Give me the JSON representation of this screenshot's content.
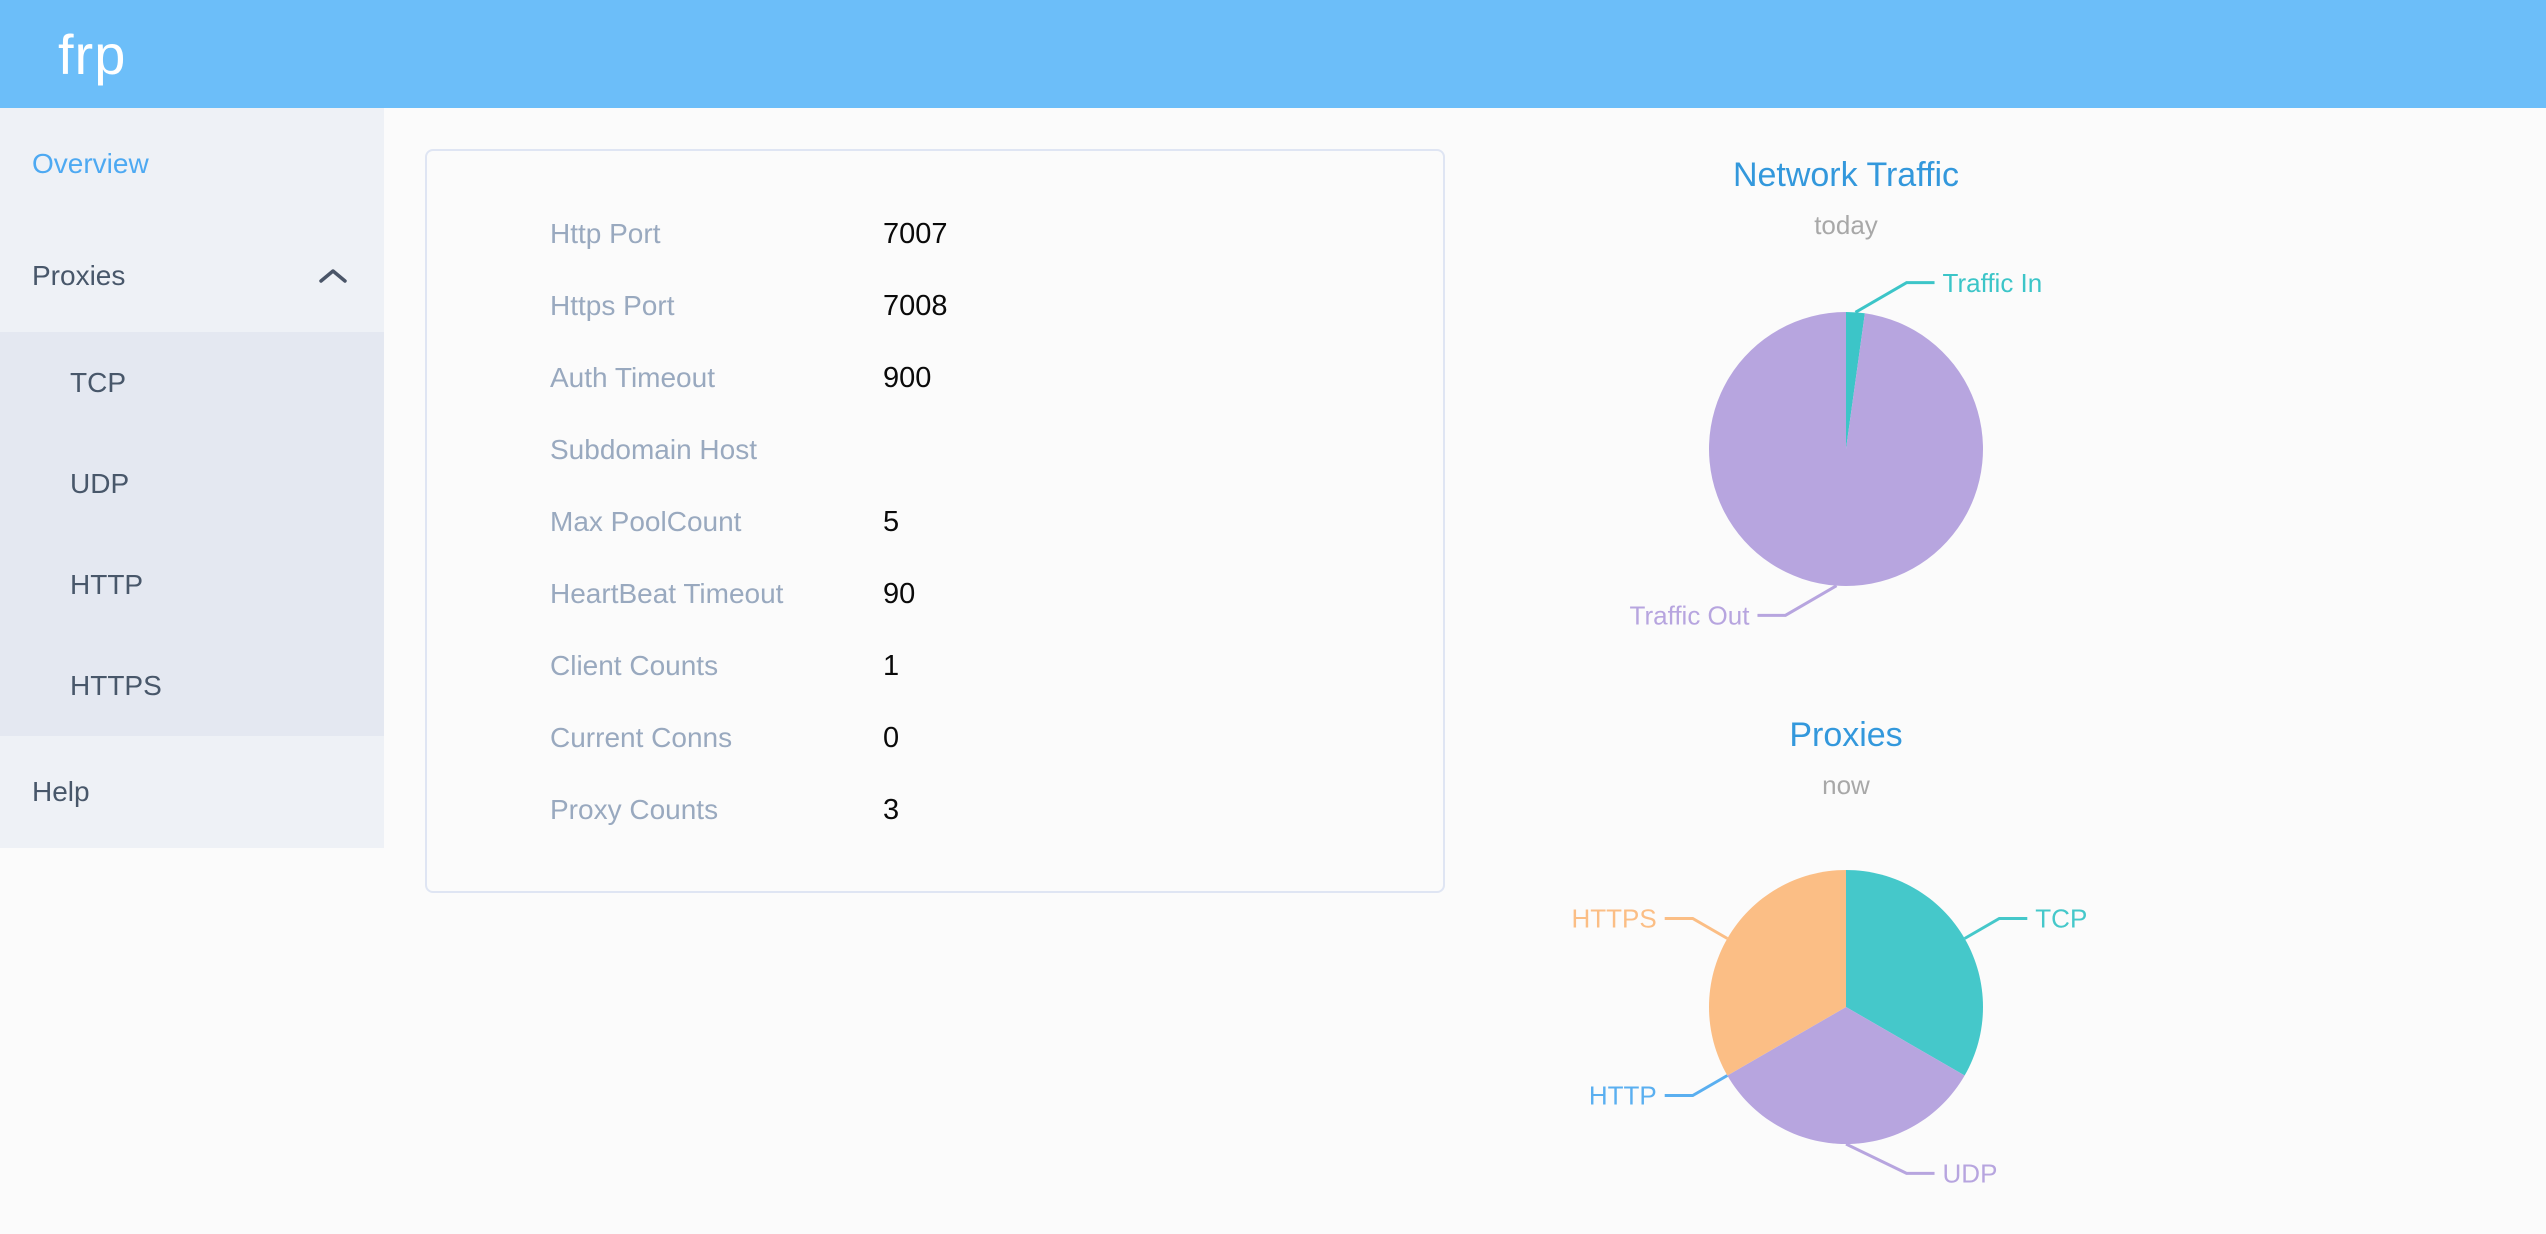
{
  "header": {
    "logo": "frp"
  },
  "sidebar": {
    "items": [
      {
        "label": "Overview",
        "active": true
      },
      {
        "label": "Proxies",
        "expanded": true
      },
      {
        "label": "TCP"
      },
      {
        "label": "UDP"
      },
      {
        "label": "HTTP"
      },
      {
        "label": "HTTPS"
      },
      {
        "label": "Help"
      }
    ]
  },
  "overview": {
    "rows": [
      {
        "label": "Http Port",
        "value": "7007"
      },
      {
        "label": "Https Port",
        "value": "7008"
      },
      {
        "label": "Auth Timeout",
        "value": "900"
      },
      {
        "label": "Subdomain Host",
        "value": ""
      },
      {
        "label": "Max PoolCount",
        "value": "5"
      },
      {
        "label": "HeartBeat Timeout",
        "value": "90"
      },
      {
        "label": "Client Counts",
        "value": "1"
      },
      {
        "label": "Current Conns",
        "value": "0"
      },
      {
        "label": "Proxy Counts",
        "value": "3"
      }
    ]
  },
  "chart_data": [
    {
      "type": "pie",
      "title": "Network Traffic",
      "subtitle": "today",
      "start_angle_deg": 0,
      "clockwise": true,
      "values_unit": "percent (estimated from slice angles, no numbers shown)",
      "legend_position": "callout-labels",
      "series": [
        {
          "name": "Traffic In",
          "value": 2.2,
          "color": "#3cc5c8"
        },
        {
          "name": "Traffic Out",
          "value": 97.8,
          "color": "#b7a5df"
        }
      ]
    },
    {
      "type": "pie",
      "title": "Proxies",
      "subtitle": "now",
      "start_angle_deg": 0,
      "clockwise": true,
      "values_unit": "proxy count",
      "legend_position": "callout-labels",
      "series": [
        {
          "name": "TCP",
          "value": 1,
          "color": "#45c8ca"
        },
        {
          "name": "UDP",
          "value": 1,
          "color": "#b7a5df"
        },
        {
          "name": "HTTP",
          "value": 0,
          "color": "#5aaff0"
        },
        {
          "name": "HTTPS",
          "value": 1,
          "color": "#fbbe85"
        }
      ]
    }
  ]
}
